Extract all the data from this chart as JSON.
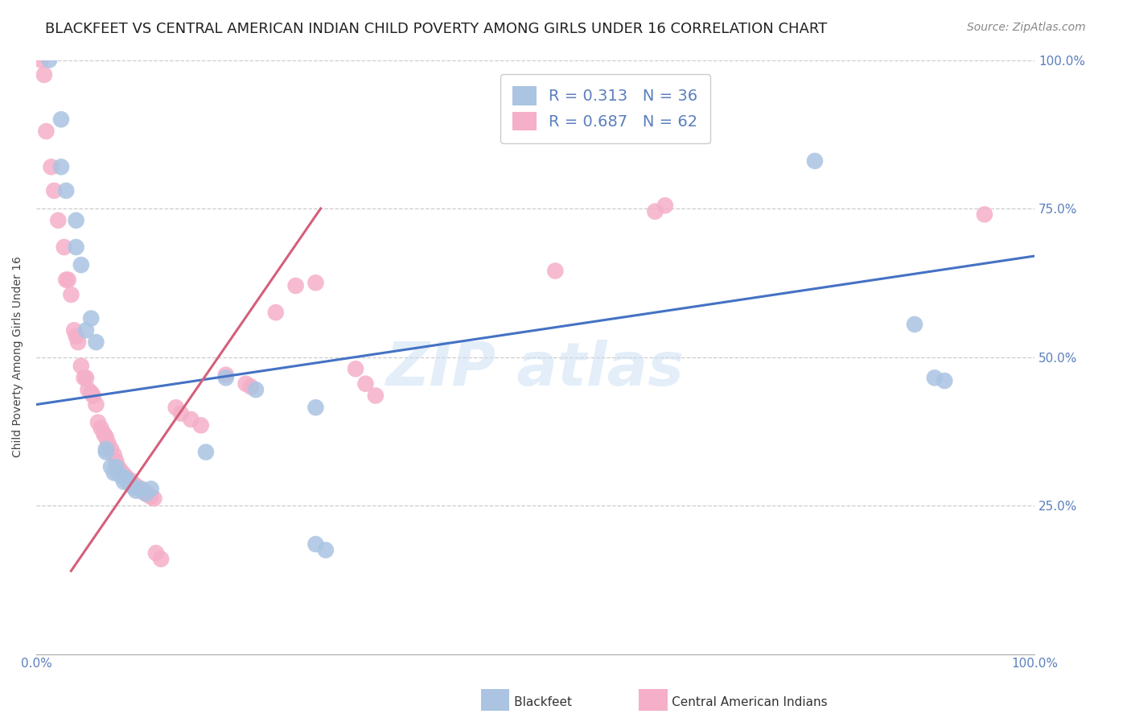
{
  "title": "BLACKFEET VS CENTRAL AMERICAN INDIAN CHILD POVERTY AMONG GIRLS UNDER 16 CORRELATION CHART",
  "source": "Source: ZipAtlas.com",
  "ylabel": "Child Poverty Among Girls Under 16",
  "watermark": "ZIP atlas",
  "blue_R": 0.313,
  "blue_N": 36,
  "pink_R": 0.687,
  "pink_N": 62,
  "blue_color": "#aac4e2",
  "pink_color": "#f5afc8",
  "blue_line_color": "#4472c4",
  "pink_line_color": "#d4607a",
  "blue_scatter": [
    [
      0.013,
      1.0
    ],
    [
      0.025,
      0.9
    ],
    [
      0.025,
      0.82
    ],
    [
      0.03,
      0.78
    ],
    [
      0.04,
      0.73
    ],
    [
      0.04,
      0.685
    ],
    [
      0.045,
      0.655
    ],
    [
      0.05,
      0.545
    ],
    [
      0.055,
      0.565
    ],
    [
      0.06,
      0.525
    ],
    [
      0.07,
      0.34
    ],
    [
      0.07,
      0.345
    ],
    [
      0.075,
      0.315
    ],
    [
      0.078,
      0.305
    ],
    [
      0.08,
      0.315
    ],
    [
      0.082,
      0.305
    ],
    [
      0.085,
      0.3
    ],
    [
      0.088,
      0.29
    ],
    [
      0.09,
      0.295
    ],
    [
      0.092,
      0.29
    ],
    [
      0.095,
      0.285
    ],
    [
      0.098,
      0.28
    ],
    [
      0.1,
      0.275
    ],
    [
      0.105,
      0.278
    ],
    [
      0.11,
      0.27
    ],
    [
      0.115,
      0.278
    ],
    [
      0.17,
      0.34
    ],
    [
      0.19,
      0.465
    ],
    [
      0.22,
      0.445
    ],
    [
      0.28,
      0.415
    ],
    [
      0.28,
      0.185
    ],
    [
      0.29,
      0.175
    ],
    [
      0.78,
      0.83
    ],
    [
      0.88,
      0.555
    ],
    [
      0.9,
      0.465
    ],
    [
      0.91,
      0.46
    ]
  ],
  "pink_scatter": [
    [
      0.005,
      1.0
    ],
    [
      0.008,
      0.975
    ],
    [
      0.01,
      0.88
    ],
    [
      0.015,
      0.82
    ],
    [
      0.018,
      0.78
    ],
    [
      0.022,
      0.73
    ],
    [
      0.028,
      0.685
    ],
    [
      0.03,
      0.63
    ],
    [
      0.032,
      0.63
    ],
    [
      0.035,
      0.605
    ],
    [
      0.038,
      0.545
    ],
    [
      0.04,
      0.535
    ],
    [
      0.042,
      0.525
    ],
    [
      0.045,
      0.485
    ],
    [
      0.048,
      0.465
    ],
    [
      0.05,
      0.465
    ],
    [
      0.052,
      0.445
    ],
    [
      0.055,
      0.44
    ],
    [
      0.057,
      0.435
    ],
    [
      0.06,
      0.42
    ],
    [
      0.062,
      0.39
    ],
    [
      0.065,
      0.38
    ],
    [
      0.068,
      0.37
    ],
    [
      0.07,
      0.365
    ],
    [
      0.072,
      0.355
    ],
    [
      0.075,
      0.345
    ],
    [
      0.078,
      0.335
    ],
    [
      0.08,
      0.325
    ],
    [
      0.082,
      0.315
    ],
    [
      0.085,
      0.308
    ],
    [
      0.088,
      0.302
    ],
    [
      0.09,
      0.298
    ],
    [
      0.092,
      0.292
    ],
    [
      0.095,
      0.292
    ],
    [
      0.098,
      0.285
    ],
    [
      0.1,
      0.283
    ],
    [
      0.102,
      0.278
    ],
    [
      0.105,
      0.278
    ],
    [
      0.108,
      0.272
    ],
    [
      0.11,
      0.272
    ],
    [
      0.112,
      0.268
    ],
    [
      0.115,
      0.265
    ],
    [
      0.118,
      0.262
    ],
    [
      0.12,
      0.17
    ],
    [
      0.125,
      0.16
    ],
    [
      0.14,
      0.415
    ],
    [
      0.145,
      0.405
    ],
    [
      0.155,
      0.395
    ],
    [
      0.165,
      0.385
    ],
    [
      0.19,
      0.47
    ],
    [
      0.21,
      0.455
    ],
    [
      0.215,
      0.45
    ],
    [
      0.24,
      0.575
    ],
    [
      0.26,
      0.62
    ],
    [
      0.28,
      0.625
    ],
    [
      0.32,
      0.48
    ],
    [
      0.33,
      0.455
    ],
    [
      0.34,
      0.435
    ],
    [
      0.52,
      0.645
    ],
    [
      0.62,
      0.745
    ],
    [
      0.63,
      0.755
    ],
    [
      0.95,
      0.74
    ]
  ],
  "blue_line": {
    "x0": 0.0,
    "x1": 1.0,
    "y0": 0.42,
    "y1": 0.67
  },
  "pink_line": {
    "x0": 0.035,
    "x1": 0.285,
    "y0": 0.14,
    "y1": 0.75
  },
  "xlim": [
    0.0,
    1.0
  ],
  "ylim": [
    0.0,
    1.0
  ],
  "xtick_vals": [
    0.0,
    0.1,
    0.2,
    0.3,
    0.4,
    0.5,
    0.6,
    0.7,
    0.8,
    0.9,
    1.0
  ],
  "xtick_labels_show": {
    "0.0": "0.0%",
    "1.0": "100.0%"
  },
  "ytick_vals": [
    0.0,
    0.25,
    0.5,
    0.75,
    1.0
  ],
  "ytick_labels_right": [
    "",
    "25.0%",
    "50.0%",
    "75.0%",
    "100.0%"
  ],
  "bg_color": "#ffffff",
  "grid_color": "#cccccc",
  "title_color": "#222222",
  "tick_color": "#5b7fbd",
  "title_fontsize": 13,
  "ylabel_fontsize": 10,
  "tick_fontsize": 11,
  "legend_fontsize": 14,
  "source_fontsize": 10
}
